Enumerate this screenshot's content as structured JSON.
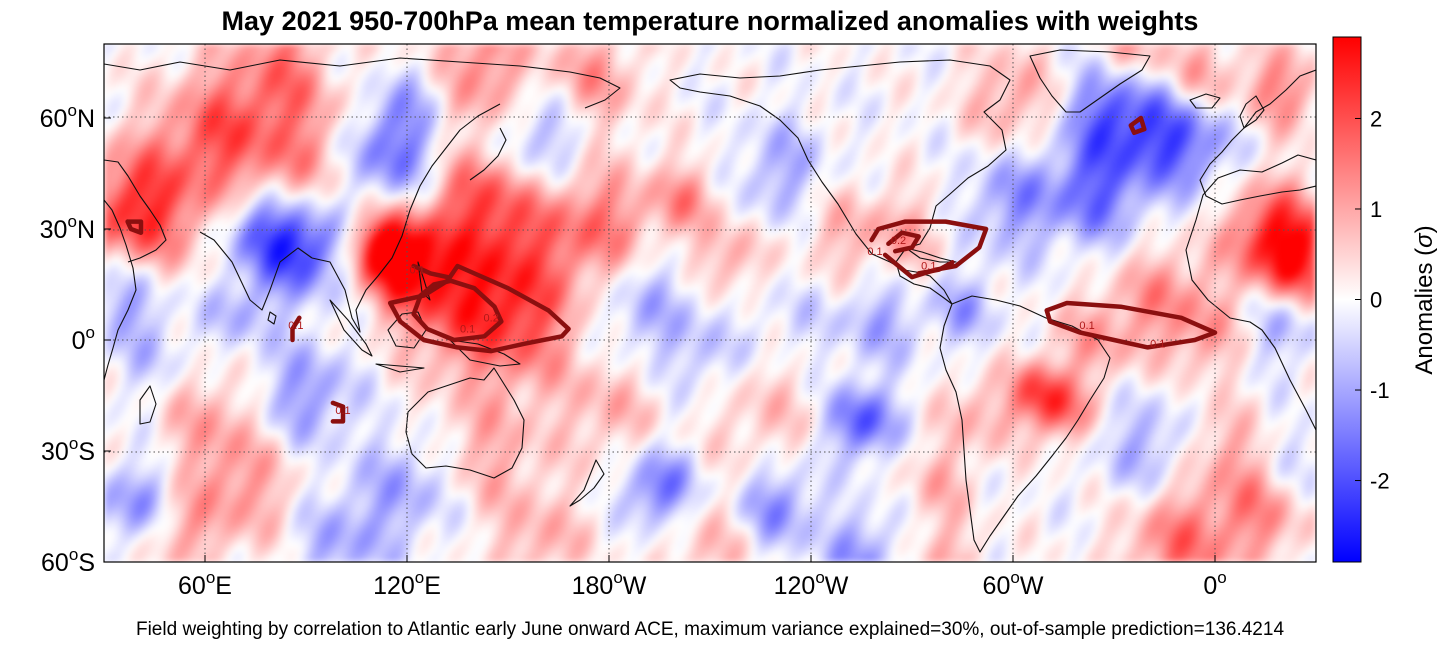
{
  "chart_data": {
    "type": "heatmap",
    "title": "May 2021 950-700hPa mean temperature normalized anomalies with weights",
    "caption": "Field weighting by correlation to Atlantic early June onward ACE, maximum variance explained=30%, out-of-sample prediction=136.4214",
    "projection": "equirectangular, centered at 150°W",
    "x_domain_deg": [
      30,
      390
    ],
    "lat_range": [
      -60,
      80
    ],
    "x_ticks": [
      {
        "lon": 60,
        "label": "60",
        "suffix": "E"
      },
      {
        "lon": 120,
        "label": "120",
        "suffix": "E"
      },
      {
        "lon": 180,
        "label": "180",
        "suffix": "W"
      },
      {
        "lon": 240,
        "label": "120",
        "suffix": "W"
      },
      {
        "lon": 300,
        "label": "60",
        "suffix": "W"
      },
      {
        "lon": 360,
        "label": "0",
        "suffix": ""
      }
    ],
    "y_ticks": [
      {
        "lat": 60,
        "label": "60",
        "suffix": "N"
      },
      {
        "lat": 30,
        "label": "30",
        "suffix": "N"
      },
      {
        "lat": 0,
        "label": "0",
        "suffix": ""
      },
      {
        "lat": -30,
        "label": "30",
        "suffix": "S"
      },
      {
        "lat": -60,
        "label": "60",
        "suffix": "S"
      }
    ],
    "degree_symbol": "o",
    "colorbar": {
      "label": "Anomalies (",
      "label_symbol": "σ",
      "label_close": ")",
      "range": [
        -2.9,
        2.9
      ],
      "ticks": [
        {
          "value": 2,
          "label": "2"
        },
        {
          "value": 1,
          "label": "1"
        },
        {
          "value": 0,
          "label": "0"
        },
        {
          "value": -1,
          "label": "-1"
        },
        {
          "value": -2,
          "label": "-2"
        }
      ],
      "low_color": "#0000ff",
      "mid_color": "#ffffff",
      "high_color": "#ff0000"
    },
    "anomaly_blobs": [
      {
        "lon": 40,
        "lat": 35,
        "r": 12,
        "v": 2.4
      },
      {
        "lon": 65,
        "lat": 55,
        "r": 13,
        "v": 1.8
      },
      {
        "lon": 90,
        "lat": 73,
        "r": 14,
        "v": 1.6
      },
      {
        "lon": 140,
        "lat": 72,
        "r": 12,
        "v": 1.5
      },
      {
        "lon": 175,
        "lat": 70,
        "r": 10,
        "v": 1.2
      },
      {
        "lon": 100,
        "lat": 75,
        "r": 8,
        "v": -1.0
      },
      {
        "lon": 115,
        "lat": 52,
        "r": 10,
        "v": -1.8
      },
      {
        "lon": 70,
        "lat": 8,
        "r": 7,
        "v": -0.9
      },
      {
        "lon": 125,
        "lat": 68,
        "r": 7,
        "v": -1.0
      },
      {
        "lon": 160,
        "lat": 55,
        "r": 10,
        "v": -1.2
      },
      {
        "lon": 88,
        "lat": 25,
        "r": 9,
        "v": -2.4
      },
      {
        "lon": 75,
        "lat": 30,
        "r": 7,
        "v": -1.3
      },
      {
        "lon": 120,
        "lat": 22,
        "r": 9,
        "v": 2.6
      },
      {
        "lon": 112,
        "lat": 25,
        "r": 6,
        "v": 1.8
      },
      {
        "lon": 135,
        "lat": 10,
        "r": 13,
        "v": 1.7
      },
      {
        "lon": 155,
        "lat": 5,
        "r": 12,
        "v": 1.6
      },
      {
        "lon": 150,
        "lat": 30,
        "r": 12,
        "v": 1.5
      },
      {
        "lon": 178,
        "lat": 30,
        "r": 12,
        "v": 1.6
      },
      {
        "lon": 140,
        "lat": 40,
        "r": 8,
        "v": 1.2
      },
      {
        "lon": 203,
        "lat": 38,
        "r": 7,
        "v": 1.2
      },
      {
        "lon": 190,
        "lat": 10,
        "r": 12,
        "v": -1.0
      },
      {
        "lon": 215,
        "lat": 22,
        "r": 7,
        "v": 1.1
      },
      {
        "lon": 232,
        "lat": 45,
        "r": 10,
        "v": -1.0
      },
      {
        "lon": 248,
        "lat": 30,
        "r": 10,
        "v": 0.8
      },
      {
        "lon": 268,
        "lat": 28,
        "r": 8,
        "v": 0.9
      },
      {
        "lon": 260,
        "lat": 5,
        "r": 8,
        "v": -1.0
      },
      {
        "lon": 285,
        "lat": 8,
        "r": 7,
        "v": -1.0
      },
      {
        "lon": 300,
        "lat": 65,
        "r": 10,
        "v": 1.1
      },
      {
        "lon": 300,
        "lat": 38,
        "r": 10,
        "v": -1.2
      },
      {
        "lon": 325,
        "lat": 40,
        "r": 10,
        "v": -1.6
      },
      {
        "lon": 330,
        "lat": 62,
        "r": 10,
        "v": -1.9
      },
      {
        "lon": 350,
        "lat": 55,
        "r": 10,
        "v": -2.0
      },
      {
        "lon": 355,
        "lat": 70,
        "r": 8,
        "v": 1.3
      },
      {
        "lon": 335,
        "lat": 78,
        "r": 8,
        "v": 1.2
      },
      {
        "lon": 380,
        "lat": 68,
        "r": 8,
        "v": 1.4
      },
      {
        "lon": 378,
        "lat": 28,
        "r": 10,
        "v": 2.4
      },
      {
        "lon": 385,
        "lat": 20,
        "r": 8,
        "v": 1.6
      },
      {
        "lon": 345,
        "lat": 12,
        "r": 10,
        "v": 1.2
      },
      {
        "lon": 325,
        "lat": 0,
        "r": 9,
        "v": 1.0
      },
      {
        "lon": 358,
        "lat": 0,
        "r": 8,
        "v": 0.9
      },
      {
        "lon": 37,
        "lat": 12,
        "r": 8,
        "v": -1.2
      },
      {
        "lon": 380,
        "lat": 5,
        "r": 8,
        "v": -1.0
      },
      {
        "lon": 45,
        "lat": -5,
        "r": 8,
        "v": -0.6
      },
      {
        "lon": 308,
        "lat": -14,
        "r": 6,
        "v": 1.9
      },
      {
        "lon": 315,
        "lat": -20,
        "r": 6,
        "v": 1.4
      },
      {
        "lon": 290,
        "lat": -20,
        "r": 8,
        "v": 0.9
      },
      {
        "lon": 278,
        "lat": -38,
        "r": 7,
        "v": 0.8
      },
      {
        "lon": 255,
        "lat": -22,
        "r": 7,
        "v": -2.0
      },
      {
        "lon": 225,
        "lat": -20,
        "r": 12,
        "v": 0.7
      },
      {
        "lon": 230,
        "lat": -45,
        "r": 8,
        "v": -1.4
      },
      {
        "lon": 195,
        "lat": -40,
        "r": 7,
        "v": -1.8
      },
      {
        "lon": 180,
        "lat": -18,
        "r": 10,
        "v": 0.9
      },
      {
        "lon": 145,
        "lat": -30,
        "r": 12,
        "v": 0.9
      },
      {
        "lon": 120,
        "lat": -40,
        "r": 10,
        "v": -1.0
      },
      {
        "lon": 90,
        "lat": -15,
        "r": 10,
        "v": -1.2
      },
      {
        "lon": 70,
        "lat": -40,
        "r": 12,
        "v": 1.2
      },
      {
        "lon": 50,
        "lat": -52,
        "r": 8,
        "v": 1.0
      },
      {
        "lon": 40,
        "lat": -45,
        "r": 8,
        "v": -1.5
      },
      {
        "lon": 60,
        "lat": -20,
        "r": 10,
        "v": 0.8
      },
      {
        "lon": 100,
        "lat": -55,
        "r": 10,
        "v": -1.0
      },
      {
        "lon": 160,
        "lat": -55,
        "r": 10,
        "v": 0.9
      },
      {
        "lon": 210,
        "lat": -58,
        "r": 10,
        "v": 0.8
      },
      {
        "lon": 255,
        "lat": -58,
        "r": 8,
        "v": -1.2
      },
      {
        "lon": 280,
        "lat": -58,
        "r": 8,
        "v": 0.8
      },
      {
        "lon": 350,
        "lat": -55,
        "r": 12,
        "v": 1.6
      },
      {
        "lon": 375,
        "lat": -45,
        "r": 10,
        "v": 1.3
      },
      {
        "lon": 340,
        "lat": -30,
        "r": 10,
        "v": -1.0
      },
      {
        "lon": 362,
        "lat": -28,
        "r": 8,
        "v": 0.8
      },
      {
        "lon": 385,
        "lat": -35,
        "r": 8,
        "v": -0.8
      },
      {
        "lon": 210,
        "lat": -5,
        "r": 8,
        "v": -0.7
      },
      {
        "lon": 235,
        "lat": 5,
        "r": 8,
        "v": -0.5
      },
      {
        "lon": 90,
        "lat": 45,
        "r": 10,
        "v": 0.8
      }
    ],
    "weight_contours": [
      {
        "level": 0.1,
        "label": "0.1",
        "label_at": [
          138,
          2
        ],
        "points": [
          [
            115,
            10
          ],
          [
            125,
            12
          ],
          [
            132,
            16
          ],
          [
            135,
            20
          ],
          [
            150,
            14
          ],
          [
            162,
            8
          ],
          [
            168,
            3
          ],
          [
            166,
            1
          ],
          [
            155,
            -1
          ],
          [
            145,
            -3
          ],
          [
            135,
            -2
          ],
          [
            125,
            0
          ],
          [
            118,
            5
          ],
          [
            115,
            10
          ]
        ]
      },
      {
        "level": 0.2,
        "label": "0.2",
        "label_at": [
          145,
          5
        ],
        "points": [
          [
            124,
            12
          ],
          [
            128,
            15
          ],
          [
            133,
            16
          ],
          [
            140,
            14
          ],
          [
            146,
            9
          ],
          [
            148,
            5
          ],
          [
            143,
            1
          ],
          [
            134,
            0
          ],
          [
            126,
            3
          ],
          [
            122,
            7
          ],
          [
            124,
            12
          ]
        ]
      },
      {
        "level": 0.1,
        "label": "0.1",
        "label_at": [
          123,
          18
        ],
        "points": [
          [
            132,
            17
          ],
          [
            127,
            18
          ],
          [
            122,
            20
          ]
        ]
      },
      {
        "level": 0.1,
        "label": "0.1",
        "label_at": [
          87,
          3
        ],
        "points": [
          [
            88,
            6
          ],
          [
            86,
            3
          ],
          [
            86,
            0
          ]
        ]
      },
      {
        "level": 0.1,
        "label": "0.1",
        "label_at": [
          101,
          -20
        ],
        "points": [
          [
            98,
            -17
          ],
          [
            101,
            -18
          ],
          [
            101,
            -22
          ],
          [
            98,
            -22
          ]
        ]
      },
      {
        "level": 0.1,
        "label": "0.1",
        "label_at": [
          259,
          23
        ],
        "points": [
          [
            258,
            27
          ],
          [
            260,
            30
          ],
          [
            268,
            32
          ],
          [
            280,
            32
          ],
          [
            292,
            30
          ],
          [
            290,
            25
          ],
          [
            283,
            20
          ],
          [
            277,
            19
          ],
          [
            270,
            17
          ],
          [
            266,
            20
          ],
          [
            262,
            23
          ]
        ]
      },
      {
        "level": 0.2,
        "label": "0.2",
        "label_at": [
          266,
          26
        ],
        "points": [
          [
            263,
            26
          ],
          [
            267,
            29
          ],
          [
            272,
            28
          ],
          [
            270,
            25
          ],
          [
            265,
            24
          ]
        ]
      },
      {
        "level": 0.1,
        "label": "0.1",
        "label_at": [
          275,
          19
        ],
        "points": [
          [
            272,
            18
          ],
          [
            278,
            19
          ],
          [
            282,
            21
          ]
        ]
      },
      {
        "level": 0.1,
        "label": "0.1",
        "label_at": [
          322,
          3
        ],
        "points": [
          [
            310,
            8
          ],
          [
            316,
            10
          ],
          [
            332,
            9
          ],
          [
            350,
            6
          ],
          [
            360,
            2
          ],
          [
            354,
            0
          ],
          [
            340,
            -2
          ],
          [
            330,
            0
          ],
          [
            320,
            2
          ],
          [
            311,
            5
          ],
          [
            310,
            8
          ]
        ]
      },
      {
        "level": 0.1,
        "label": "0.1",
        "label_at": [
          343,
          -2
        ],
        "points": []
      },
      {
        "level": 0.1,
        "label": "",
        "label_at": [
          337,
          55
        ],
        "points": [
          [
            335,
            58
          ],
          [
            338,
            60
          ],
          [
            339,
            57
          ],
          [
            336,
            56
          ],
          [
            335,
            58
          ]
        ]
      },
      {
        "level": 0.1,
        "label": "",
        "label_at": [
          40,
          30
        ],
        "points": [
          [
            37,
            32
          ],
          [
            41,
            32
          ],
          [
            41,
            29
          ],
          [
            38,
            30
          ],
          [
            37,
            32
          ]
        ]
      }
    ]
  }
}
